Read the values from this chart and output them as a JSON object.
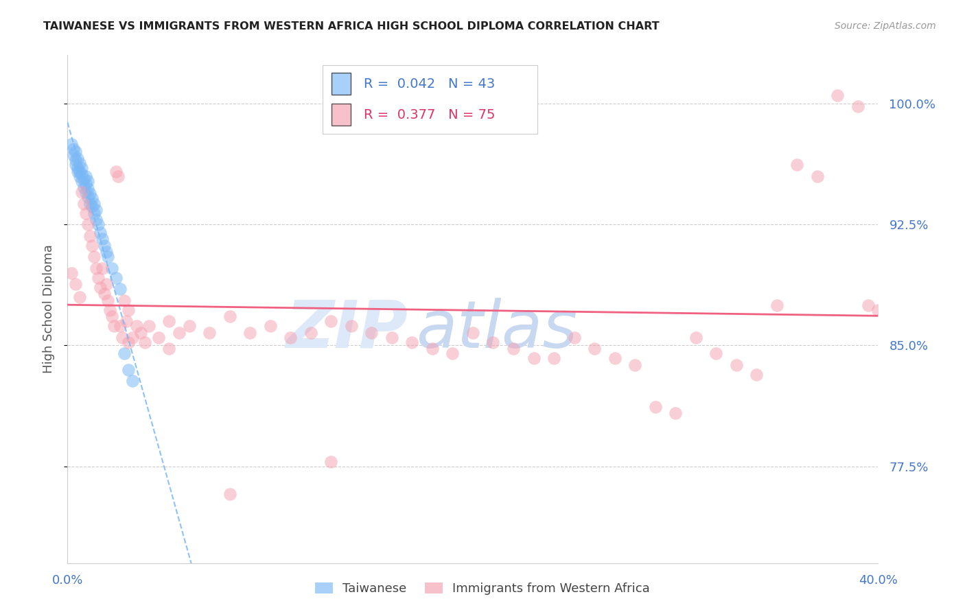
{
  "title": "TAIWANESE VS IMMIGRANTS FROM WESTERN AFRICA HIGH SCHOOL DIPLOMA CORRELATION CHART",
  "source": "Source: ZipAtlas.com",
  "ylabel": "High School Diploma",
  "ytick_values": [
    0.775,
    0.85,
    0.925,
    1.0
  ],
  "xmin": 0.0,
  "xmax": 0.4,
  "ymin": 0.715,
  "ymax": 1.03,
  "legend_blue_r": "0.042",
  "legend_blue_n": "43",
  "legend_pink_r": "0.377",
  "legend_pink_n": "75",
  "blue_color": "#7ab8f5",
  "pink_color": "#f4a0b0",
  "trendline_blue_color": "#7ab8f5",
  "trendline_pink_color": "#f06080",
  "grid_color": "#cccccc",
  "watermark_zip_color": "#dde8f8",
  "watermark_atlas_color": "#c5d5ee",
  "title_color": "#222222",
  "axis_label_color": "#4477cc",
  "blue_scatter_x": [
    0.002,
    0.003,
    0.003,
    0.004,
    0.004,
    0.004,
    0.005,
    0.005,
    0.005,
    0.006,
    0.006,
    0.006,
    0.007,
    0.007,
    0.007,
    0.008,
    0.008,
    0.009,
    0.009,
    0.009,
    0.01,
    0.01,
    0.01,
    0.011,
    0.011,
    0.012,
    0.012,
    0.013,
    0.013,
    0.014,
    0.014,
    0.015,
    0.016,
    0.017,
    0.018,
    0.019,
    0.02,
    0.022,
    0.024,
    0.026,
    0.028,
    0.03,
    0.032
  ],
  "blue_scatter_y": [
    0.975,
    0.972,
    0.968,
    0.965,
    0.962,
    0.97,
    0.96,
    0.958,
    0.966,
    0.955,
    0.958,
    0.963,
    0.952,
    0.956,
    0.96,
    0.948,
    0.953,
    0.945,
    0.95,
    0.955,
    0.942,
    0.947,
    0.952,
    0.938,
    0.944,
    0.936,
    0.941,
    0.932,
    0.938,
    0.928,
    0.934,
    0.925,
    0.92,
    0.916,
    0.912,
    0.908,
    0.905,
    0.898,
    0.892,
    0.885,
    0.845,
    0.835,
    0.828
  ],
  "pink_scatter_x": [
    0.002,
    0.004,
    0.006,
    0.007,
    0.008,
    0.009,
    0.01,
    0.011,
    0.012,
    0.013,
    0.014,
    0.015,
    0.016,
    0.017,
    0.018,
    0.019,
    0.02,
    0.021,
    0.022,
    0.023,
    0.024,
    0.025,
    0.026,
    0.027,
    0.028,
    0.029,
    0.03,
    0.032,
    0.034,
    0.036,
    0.038,
    0.04,
    0.045,
    0.05,
    0.055,
    0.06,
    0.07,
    0.08,
    0.09,
    0.1,
    0.11,
    0.12,
    0.13,
    0.14,
    0.15,
    0.16,
    0.17,
    0.18,
    0.19,
    0.2,
    0.21,
    0.22,
    0.24,
    0.25,
    0.26,
    0.27,
    0.28,
    0.29,
    0.3,
    0.32,
    0.33,
    0.34,
    0.36,
    0.37,
    0.38,
    0.39,
    0.395,
    0.4,
    0.35,
    0.31,
    0.23,
    0.13,
    0.08,
    0.05,
    0.03
  ],
  "pink_scatter_y": [
    0.895,
    0.888,
    0.88,
    0.945,
    0.938,
    0.932,
    0.925,
    0.918,
    0.912,
    0.905,
    0.898,
    0.892,
    0.886,
    0.898,
    0.882,
    0.888,
    0.878,
    0.872,
    0.868,
    0.862,
    0.958,
    0.955,
    0.862,
    0.855,
    0.878,
    0.865,
    0.872,
    0.855,
    0.862,
    0.858,
    0.852,
    0.862,
    0.855,
    0.865,
    0.858,
    0.862,
    0.858,
    0.868,
    0.858,
    0.862,
    0.855,
    0.858,
    0.865,
    0.862,
    0.858,
    0.855,
    0.852,
    0.848,
    0.845,
    0.858,
    0.852,
    0.848,
    0.842,
    0.855,
    0.848,
    0.842,
    0.838,
    0.812,
    0.808,
    0.845,
    0.838,
    0.832,
    0.962,
    0.955,
    1.005,
    0.998,
    0.875,
    0.872,
    0.875,
    0.855,
    0.842,
    0.778,
    0.758,
    0.848,
    0.852
  ]
}
